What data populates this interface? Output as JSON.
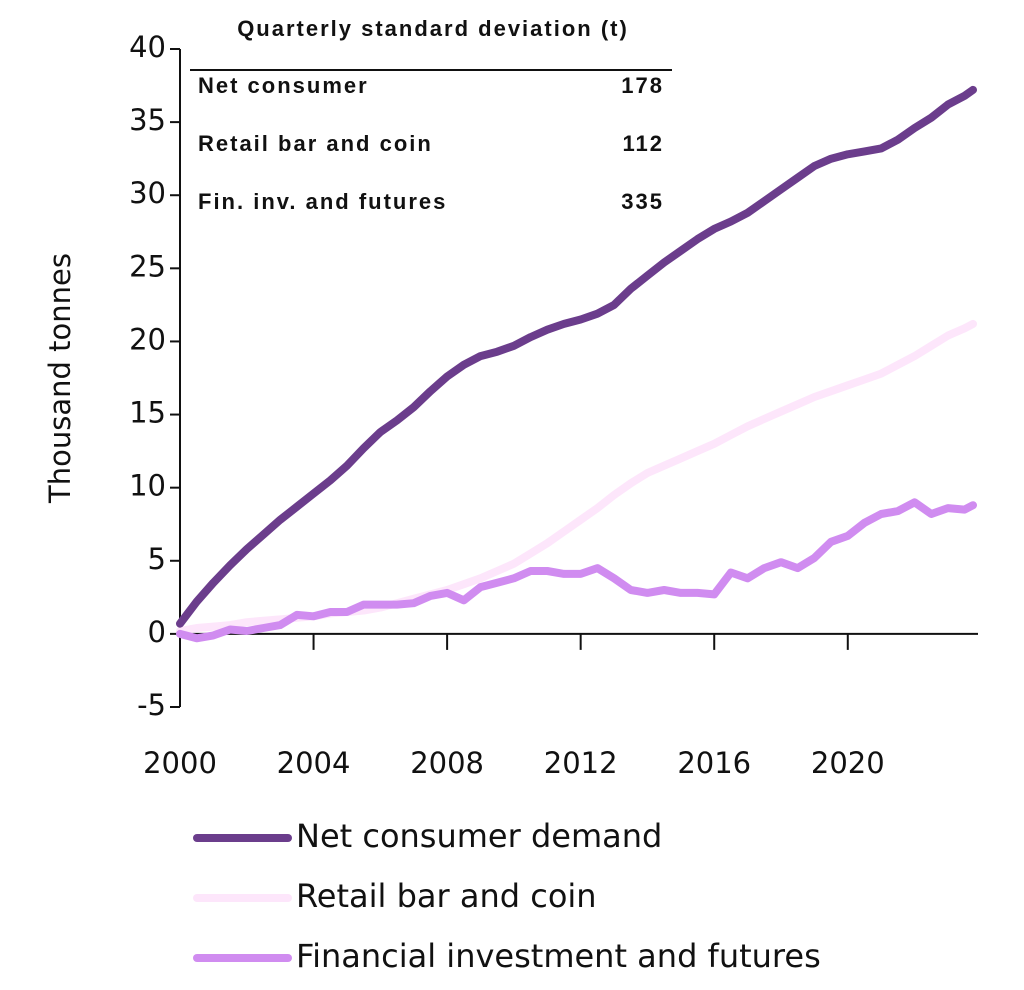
{
  "chart_data": {
    "type": "line",
    "y_label": "Thousand tonnes",
    "x": [
      2000,
      2000.5,
      2001,
      2001.5,
      2002,
      2002.5,
      2003,
      2003.5,
      2004,
      2004.5,
      2005,
      2005.5,
      2006,
      2006.5,
      2007,
      2007.5,
      2008,
      2008.5,
      2009,
      2009.5,
      2010,
      2010.5,
      2011,
      2011.5,
      2012,
      2012.5,
      2013,
      2013.5,
      2014,
      2014.5,
      2015,
      2015.5,
      2016,
      2016.5,
      2017,
      2017.5,
      2018,
      2018.5,
      2019,
      2019.5,
      2020,
      2020.5,
      2021,
      2021.5,
      2022,
      2022.5,
      2023,
      2023.5,
      2023.75
    ],
    "series": [
      {
        "name": "Net consumer demand",
        "color": "#6b3d8c",
        "values": [
          0.7,
          2.2,
          3.5,
          4.7,
          5.8,
          6.8,
          7.8,
          8.7,
          9.6,
          10.5,
          11.5,
          12.7,
          13.8,
          14.6,
          15.5,
          16.6,
          17.6,
          18.4,
          19.0,
          19.3,
          19.7,
          20.3,
          20.8,
          21.2,
          21.5,
          21.9,
          22.5,
          23.6,
          24.5,
          25.4,
          26.2,
          27.0,
          27.7,
          28.2,
          28.8,
          29.6,
          30.4,
          31.2,
          32.0,
          32.5,
          32.8,
          33.0,
          33.2,
          33.8,
          34.6,
          35.3,
          36.2,
          36.8,
          37.2
        ]
      },
      {
        "name": "Retail bar and coin",
        "color": "#fde6fb",
        "values": [
          0.2,
          0.4,
          0.5,
          0.6,
          0.8,
          0.9,
          1.0,
          1.1,
          1.2,
          1.4,
          1.5,
          1.6,
          1.8,
          2.1,
          2.4,
          2.7,
          3.0,
          3.4,
          3.8,
          4.3,
          4.8,
          5.5,
          6.2,
          7.0,
          7.8,
          8.6,
          9.5,
          10.3,
          11.0,
          11.5,
          12.0,
          12.5,
          13.0,
          13.6,
          14.2,
          14.7,
          15.2,
          15.7,
          16.2,
          16.6,
          17.0,
          17.4,
          17.8,
          18.4,
          19.0,
          19.7,
          20.4,
          20.9,
          21.2
        ]
      },
      {
        "name": "Financial investment and futures",
        "color": "#d08cf0",
        "values": [
          0,
          -0.3,
          -0.1,
          0.3,
          0.2,
          0.4,
          0.6,
          1.3,
          1.2,
          1.5,
          1.5,
          2.0,
          2.0,
          2.0,
          2.1,
          2.6,
          2.8,
          2.3,
          3.2,
          3.5,
          3.8,
          4.3,
          4.3,
          4.1,
          4.1,
          4.5,
          3.8,
          3.0,
          2.8,
          3.0,
          2.8,
          2.8,
          2.7,
          4.2,
          3.8,
          4.5,
          4.9,
          4.5,
          5.2,
          6.3,
          6.7,
          7.6,
          8.2,
          8.4,
          9.0,
          8.2,
          8.6,
          8.5,
          8.8
        ]
      }
    ],
    "xlim": [
      2000,
      2023.9
    ],
    "xticks": [
      2000,
      2004,
      2008,
      2012,
      2016,
      2020
    ],
    "ylim": [
      -5,
      40
    ],
    "yticks": [
      -5,
      0,
      5,
      10,
      15,
      20,
      25,
      30,
      35,
      40
    ],
    "inset": {
      "title": "Quarterly standard deviation (t)",
      "rows": [
        [
          "Net consumer",
          178
        ],
        [
          "Retail bar and coin",
          112
        ],
        [
          "Fin. inv. and futures",
          335
        ]
      ]
    }
  }
}
